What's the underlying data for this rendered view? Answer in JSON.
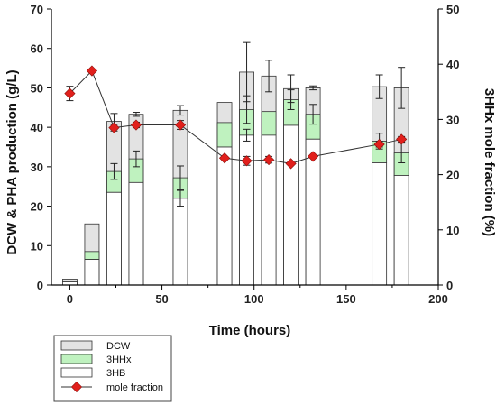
{
  "chart_data": {
    "type": "bar",
    "xlabel": "Time (hours)",
    "ylabel": "DCW & PHA production (g/L)",
    "y2label": "3HHx mole fraction (%)",
    "xlim": [
      -10,
      200
    ],
    "ylim": [
      0,
      70
    ],
    "y2lim": [
      0,
      50
    ],
    "xticks": [
      0,
      50,
      100,
      150,
      200
    ],
    "yticks": [
      0,
      10,
      20,
      30,
      40,
      50,
      60,
      70
    ],
    "y2ticks": [
      0,
      10,
      20,
      30,
      40,
      50
    ],
    "grid": false,
    "legend_position": "below-left",
    "stacked": true,
    "colors": {
      "DCW": "#e3e3e3",
      "3HHx": "#bff2bf",
      "3HB": "#ffffff",
      "mole fraction": "#e1201c",
      "line": "#333333"
    },
    "x": [
      0,
      12,
      24,
      36,
      60,
      84,
      96,
      108,
      120,
      132,
      168,
      180
    ],
    "series": [
      {
        "name": "3HB",
        "values": [
          0.8,
          6.5,
          23.5,
          26.0,
          22.0,
          35.0,
          38.0,
          38.0,
          40.5,
          37.0,
          31.0,
          27.8
        ]
      },
      {
        "name": "3HHx",
        "values": [
          0.2,
          2.0,
          5.3,
          6.0,
          5.2,
          6.2,
          6.5,
          6.0,
          6.5,
          6.3,
          5.5,
          5.7
        ]
      },
      {
        "name": "DCW",
        "values": [
          1.5,
          15.5,
          41.5,
          43.3,
          44.3,
          46.3,
          54.0,
          53.0,
          49.8,
          50.0,
          50.3,
          50.0
        ]
      }
    ],
    "error_bars": {
      "DCW": [
        0,
        0,
        2.0,
        0.5,
        1.2,
        0,
        7.5,
        4.0,
        3.5,
        0.5,
        3.0,
        5.2
      ],
      "3HHx": [
        0,
        0,
        2.0,
        2.0,
        3.0,
        0,
        3.5,
        0,
        2.5,
        2.5,
        2.0,
        2.5
      ],
      "3HB": [
        0,
        0,
        0,
        0,
        2.0,
        0,
        1.5,
        0,
        0,
        0,
        0,
        0
      ]
    },
    "line_series": {
      "name": "mole fraction",
      "axis": "right",
      "x": [
        0,
        12,
        24,
        36,
        60,
        84,
        96,
        108,
        120,
        132,
        168,
        180
      ],
      "values": [
        34.7,
        38.8,
        28.5,
        29.0,
        29.0,
        23.0,
        22.5,
        22.7,
        22.0,
        23.3,
        25.5,
        26.4
      ],
      "errors": [
        1.3,
        0,
        0.6,
        0.5,
        0.8,
        0,
        0.8,
        0.6,
        0,
        0,
        0.5,
        0.5
      ]
    },
    "legend": [
      "DCW",
      "3HHx",
      "3HB",
      "mole fraction"
    ]
  }
}
